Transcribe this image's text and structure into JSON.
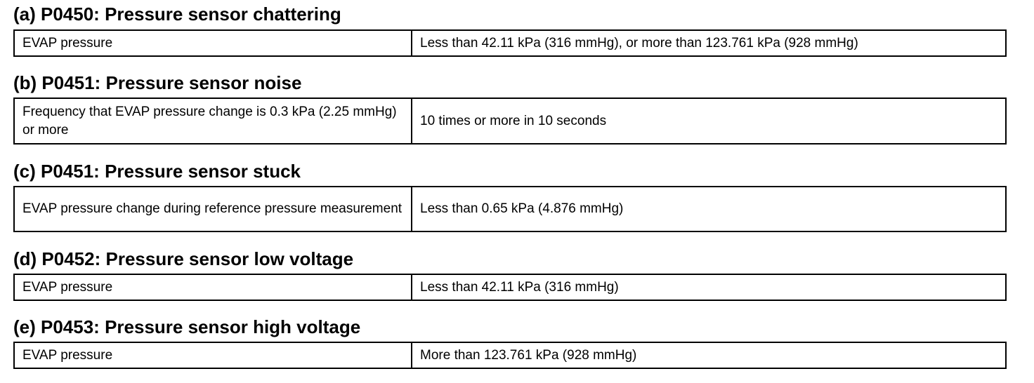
{
  "sections": [
    {
      "title": "(a) P0450: Pressure sensor chattering",
      "rows": [
        [
          "EVAP pressure",
          "Less than 42.11 kPa (316 mmHg), or more than 123.761 kPa (928 mmHg)"
        ]
      ]
    },
    {
      "title": "(b) P0451: Pressure sensor noise",
      "rows": [
        [
          "Frequency that EVAP pressure change is 0.3 kPa (2.25 mmHg) or more",
          "10 times or more in 10 seconds"
        ]
      ]
    },
    {
      "title": "(c) P0451: Pressure sensor stuck",
      "rows": [
        [
          "EVAP pressure change during reference pressure measurement",
          "Less than 0.65 kPa (4.876 mmHg)"
        ]
      ]
    },
    {
      "title": "(d) P0452: Pressure sensor low voltage",
      "rows": [
        [
          "EVAP pressure",
          "Less than 42.11 kPa (316 mmHg)"
        ]
      ]
    },
    {
      "title": "(e) P0453: Pressure sensor high voltage",
      "rows": [
        [
          "EVAP pressure",
          "More than 123.761 kPa (928 mmHg)"
        ]
      ]
    }
  ]
}
